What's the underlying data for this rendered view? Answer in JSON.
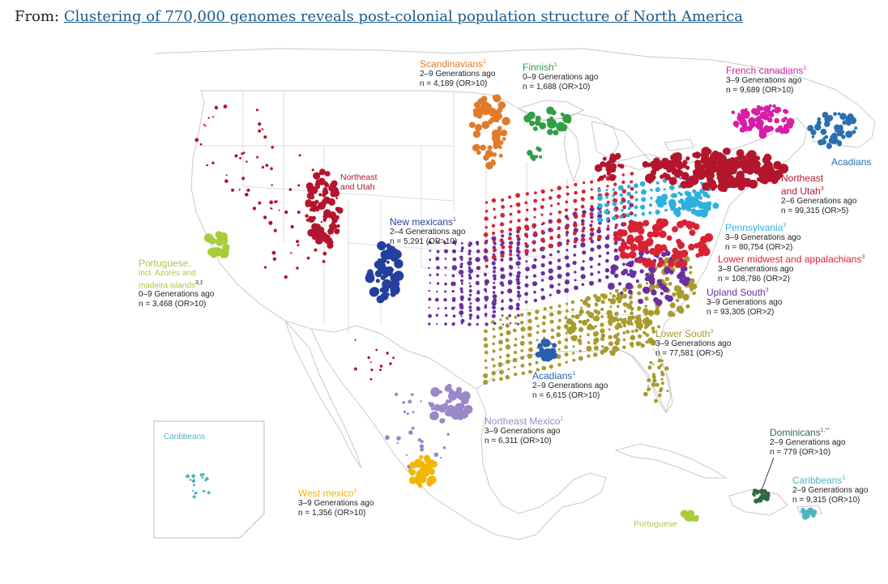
{
  "header": {
    "prefix": "From:",
    "link_text": "Clustering of 770,000 genomes reveals post-colonial population structure of North America"
  },
  "colors": {
    "scandinavians": "#e07b2a",
    "finnish": "#2f9e44",
    "french_canadians": "#d61fa6",
    "acadians_ne": "#2a6fb0",
    "northeast_utah": "#b3162c",
    "pennsylvania": "#2fb0de",
    "lower_midwest": "#d92233",
    "upland_south": "#6a2fa0",
    "lower_south": "#a89a2e",
    "acadians_louisiana": "#2a5fb0",
    "new_mexicans": "#243f9e",
    "portuguese": "#a9cc3a",
    "northeast_mexico": "#9b87c9",
    "west_mexico": "#f2b705",
    "dominicans": "#2e6b3e",
    "caribbeans": "#4fb3c6"
  },
  "labels": {
    "scandinavians": {
      "name": "Scandinavians",
      "sup": "1",
      "line1": "2–9 Generations ago",
      "line2": "n = 4,189 (OR>10)"
    },
    "finnish": {
      "name": "Finnish",
      "sup": "1",
      "line1": "0–9 Generations ago",
      "line2": "n = 1,688 (OR>10)"
    },
    "french_canadians": {
      "name": "French canadians",
      "sup": "1",
      "line1": "3–9 Generations ago",
      "line2": "n = 9,689 (OR>10)"
    },
    "acadians_ne": {
      "name": "Acadians"
    },
    "northeast_utah_map": {
      "line1": "Northeast",
      "line2": "and Utah"
    },
    "northeast_utah": {
      "line1": "Northeast",
      "line2": "and Utah",
      "sup": "3",
      "line3": "2–6 Generations ago",
      "line4": "n = 99,315 (OR>5)"
    },
    "pennsylvania": {
      "name": "Pennsylvania",
      "sup": "3",
      "line1": "3–9 Generations ago",
      "line2": "n = 80,754 (OR>2)"
    },
    "lower_midwest": {
      "name": "Lower midwest and appalachians",
      "sup": "3",
      "line1": "3–8 Generations ago",
      "line2": "n = 108,786 (OR>2)"
    },
    "upland_south": {
      "name": "Upland South",
      "sup": "3",
      "line1": "3–9 Generations ago",
      "line2": "n = 93,305 (OR>2)"
    },
    "lower_south": {
      "name": "Lower South",
      "sup": "3",
      "line1": "3–9 Generations ago",
      "line2": "n = 77,581 (OR>5)"
    },
    "acadians_louisiana": {
      "name": "Acadians",
      "sup": "1",
      "line1": "2–9 Generations ago",
      "line2": "n = 6,615 (OR>10)"
    },
    "new_mexicans": {
      "name": "New mexicans",
      "sup": "1",
      "line1": "2–4 Generations ago",
      "line2": "n = 5,291 (OR>10)"
    },
    "portuguese_main": {
      "line1": "Portuguese,",
      "line2": "incl. Azores and",
      "line3": "madeira islands",
      "sup": "3,‡",
      "line4": "0–9 Generations ago",
      "line5": "n = 3,468 (OR>10)"
    },
    "northeast_mexico": {
      "name": "Northeast Mexico",
      "sup": "1",
      "line1": "3–9 Generations ago",
      "line2": "n = 6,311 (OR>10)"
    },
    "west_mexico": {
      "name": "West mexico",
      "sup": "1",
      "line1": "3–9 Generations ago",
      "line2": "n = 1,356 (OR>10)"
    },
    "dominicans": {
      "name": "Dominicans",
      "sup": "1,**",
      "line1": "2–9 Generations ago",
      "line2": "n = 779 (OR>10)"
    },
    "caribbeans": {
      "name": "Caribbeans",
      "sup": "1",
      "line1": "2–9 Generations ago",
      "line2": "n = 9,315 (OR>10)"
    },
    "portuguese_caribbean": {
      "name": "Portuguese"
    },
    "caribbeans_inset": {
      "name": "Caribbeans"
    }
  }
}
